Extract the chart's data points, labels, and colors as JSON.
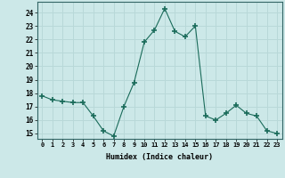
{
  "x": [
    0,
    1,
    2,
    3,
    4,
    5,
    6,
    7,
    8,
    9,
    10,
    11,
    12,
    13,
    14,
    15,
    16,
    17,
    18,
    19,
    20,
    21,
    22,
    23
  ],
  "y": [
    17.8,
    17.5,
    17.4,
    17.3,
    17.3,
    16.3,
    15.2,
    14.8,
    17.0,
    18.8,
    21.8,
    22.7,
    24.3,
    22.6,
    22.2,
    23.0,
    16.3,
    16.0,
    16.5,
    17.1,
    16.5,
    16.3,
    15.2,
    15.0
  ],
  "xlabel": "Humidex (Indice chaleur)",
  "ylabel_ticks": [
    15,
    16,
    17,
    18,
    19,
    20,
    21,
    22,
    23,
    24
  ],
  "ylim": [
    14.6,
    24.8
  ],
  "xlim": [
    -0.5,
    23.5
  ],
  "bg_color": "#cce8e8",
  "grid_color": "#b8d8d8",
  "line_color": "#1a6b5a",
  "marker_color": "#1a6b5a"
}
